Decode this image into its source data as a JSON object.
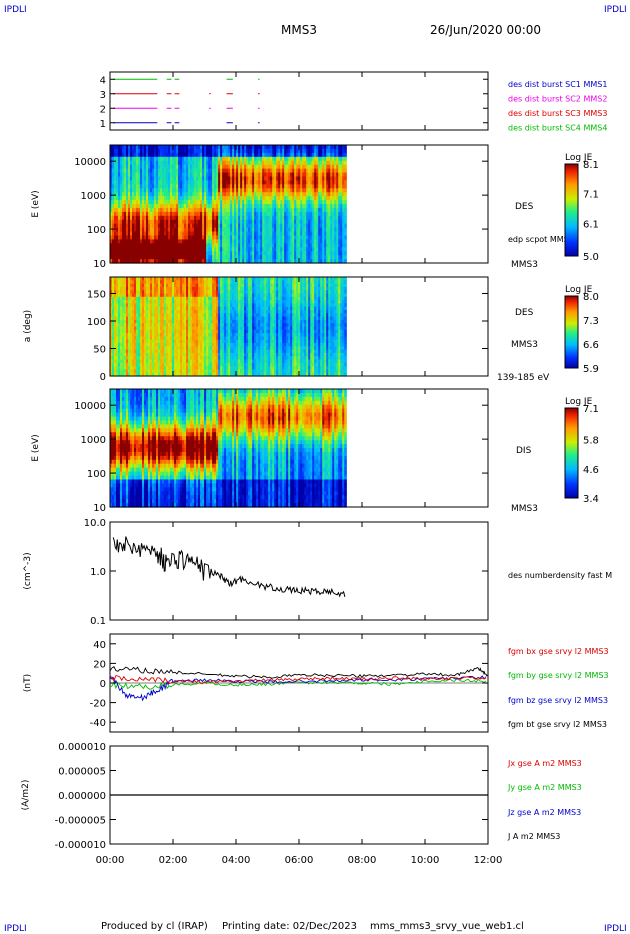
{
  "header": {
    "corner_left": "IPDLI",
    "corner_right": "IPDLI",
    "spacecraft": "MMS3",
    "date": "26/Jun/2020 00:00"
  },
  "footer": {
    "produced_by": "Produced by cl (IRAP)",
    "printing_date": "Printing date: 02/Dec/2023",
    "filename": "mms_mms3_srvy_vue_web1.cl",
    "corner_left": "IPDLI",
    "corner_right": "IPDLI"
  },
  "x_axis": {
    "ticks": [
      "00:00",
      "02:00",
      "04:00",
      "06:00",
      "08:00",
      "10:00",
      "12:00"
    ],
    "range_hours": [
      0,
      12
    ],
    "data_end_hours": 7.5
  },
  "colors": {
    "green": "#00bb00",
    "red": "#dd0000",
    "magenta": "#ee00ee",
    "blue": "#0000cc",
    "black": "#000000"
  },
  "chart_data": [
    {
      "type": "line",
      "panel": "burst-availability",
      "ylim": [
        0.5,
        4.5
      ],
      "y_ticks": [
        "4",
        "3",
        "2",
        "1"
      ],
      "legend": [
        {
          "label": "des dist burst SC1 MMS1",
          "color": "#0000cc"
        },
        {
          "label": "des dist burst SC2 MMS2",
          "color": "#ee00ee"
        },
        {
          "label": "des dist burst SC3 MMS3",
          "color": "#dd0000"
        },
        {
          "label": "des dist burst SC4 MMS4",
          "color": "#00bb00"
        }
      ],
      "series": [
        {
          "level": 4,
          "color": "#00bb00",
          "intervals_hours": [
            [
              0.1,
              1.5
            ],
            [
              1.8,
              1.95
            ],
            [
              2.05,
              2.2
            ],
            [
              3.7,
              3.9
            ],
            [
              4.7,
              4.75
            ]
          ]
        },
        {
          "level": 3,
          "color": "#dd0000",
          "intervals_hours": [
            [
              0.1,
              1.5
            ],
            [
              1.8,
              1.95
            ],
            [
              2.05,
              2.2
            ],
            [
              3.15,
              3.2
            ],
            [
              3.7,
              3.9
            ],
            [
              4.7,
              4.75
            ]
          ]
        },
        {
          "level": 2,
          "color": "#ee00ee",
          "intervals_hours": [
            [
              0.1,
              1.5
            ],
            [
              1.8,
              1.95
            ],
            [
              2.05,
              2.2
            ],
            [
              3.15,
              3.2
            ],
            [
              3.7,
              3.9
            ],
            [
              4.7,
              4.75
            ]
          ]
        },
        {
          "level": 1,
          "color": "#0000cc",
          "intervals_hours": [
            [
              0.1,
              1.5
            ],
            [
              1.8,
              1.95
            ],
            [
              2.05,
              2.2
            ],
            [
              3.7,
              3.9
            ],
            [
              4.7,
              4.75
            ]
          ]
        }
      ]
    },
    {
      "type": "heatmap",
      "panel": "des-energy",
      "ylabel": "E (eV)",
      "y_scale": "log",
      "ylim": [
        10,
        30000
      ],
      "y_ticks": [
        "10000",
        "1000",
        "100",
        "10"
      ],
      "right_labels": [
        "DES",
        "edp scpot MMS3",
        "MMS3"
      ],
      "colorbar": {
        "title": "Log JE",
        "ticks": [
          "8.1",
          "7.1",
          "6.1",
          "5.0"
        ],
        "range": [
          5.0,
          8.1
        ]
      }
    },
    {
      "type": "heatmap",
      "panel": "des-pitch-angle",
      "ylabel": "a (deg)",
      "ylim": [
        0,
        180
      ],
      "y_ticks": [
        "150",
        "100",
        "50",
        "0"
      ],
      "right_labels": [
        "DES",
        "MMS3",
        "139-185 eV"
      ],
      "colorbar": {
        "title": "Log JE",
        "ticks": [
          "8.0",
          "7.3",
          "6.6",
          "5.9"
        ],
        "range": [
          5.9,
          8.0
        ]
      }
    },
    {
      "type": "heatmap",
      "panel": "dis-energy",
      "ylabel": "E (eV)",
      "y_scale": "log",
      "ylim": [
        10,
        30000
      ],
      "y_ticks": [
        "10000",
        "1000",
        "100",
        "10"
      ],
      "right_labels": [
        "DIS",
        "MMS3"
      ],
      "colorbar": {
        "title": "Log JE",
        "ticks": [
          "7.1",
          "5.8",
          "4.6",
          "3.4"
        ],
        "range": [
          3.4,
          7.1
        ]
      }
    },
    {
      "type": "line",
      "panel": "density",
      "ylabel": "(cm^-3)",
      "y_scale": "log",
      "ylim": [
        0.1,
        10
      ],
      "y_ticks": [
        "10.0",
        "1.0",
        "0.1"
      ],
      "right_labels": [
        "des numberdensity fast M"
      ],
      "series": [
        {
          "color": "#000000",
          "x": [
            0.1,
            0.5,
            1.0,
            1.5,
            1.8,
            2.2,
            2.6,
            3.0,
            3.5,
            3.8,
            4.2,
            4.8,
            5.3,
            5.8,
            6.2,
            6.6,
            7.0,
            7.5
          ],
          "y": [
            4.0,
            3.5,
            3.0,
            2.5,
            1.5,
            2.0,
            1.6,
            1.1,
            0.8,
            0.55,
            0.7,
            0.5,
            0.45,
            0.4,
            0.4,
            0.38,
            0.38,
            0.33
          ]
        }
      ]
    },
    {
      "type": "line",
      "panel": "magnetic-field",
      "ylabel": "(nT)",
      "ylim": [
        -50,
        50
      ],
      "y_ticks": [
        "40",
        "20",
        "0",
        "-20",
        "-40"
      ],
      "legend": [
        {
          "label": "fgm bx gse srvy l2 MMS3",
          "color": "#dd0000"
        },
        {
          "label": "fgm by gse srvy l2 MMS3",
          "color": "#00bb00"
        },
        {
          "label": "fgm bz gse srvy l2 MMS3",
          "color": "#0000cc"
        },
        {
          "label": "fgm bt gse srvy l2 MMS3",
          "color": "#000000"
        }
      ],
      "series": [
        {
          "name": "bt",
          "color": "#000000",
          "x": [
            0,
            1,
            2,
            3,
            4,
            5,
            6,
            7,
            8,
            9,
            10,
            11,
            11.7,
            12
          ],
          "y": [
            14,
            13,
            11,
            9,
            7,
            6,
            8,
            8,
            7,
            8,
            9,
            8,
            15,
            7
          ]
        },
        {
          "name": "bx",
          "color": "#dd0000",
          "x": [
            0,
            1,
            2,
            3,
            4,
            5,
            6,
            7,
            8,
            9,
            10,
            11,
            12
          ],
          "y": [
            5,
            3,
            2,
            1,
            2,
            3,
            4,
            5,
            4,
            5,
            4,
            5,
            5
          ]
        },
        {
          "name": "by",
          "color": "#00bb00",
          "x": [
            0,
            1,
            2,
            3,
            4,
            5,
            6,
            7,
            8,
            9,
            10,
            11,
            12
          ],
          "y": [
            -2,
            -4,
            -2,
            0,
            -2,
            -1,
            0,
            1,
            0,
            -1,
            2,
            3,
            2
          ]
        },
        {
          "name": "bz",
          "color": "#0000cc",
          "x": [
            0,
            0.5,
            1,
            1.5,
            2,
            3,
            4,
            5,
            6,
            7,
            8,
            9,
            10,
            11,
            12
          ],
          "y": [
            8,
            -12,
            -15,
            -8,
            2,
            3,
            2,
            1,
            2,
            2,
            3,
            3,
            4,
            5,
            6
          ]
        }
      ]
    },
    {
      "type": "line",
      "panel": "current-density",
      "ylabel": "(A/m2)",
      "ylim": [
        -1e-05,
        1e-05
      ],
      "y_ticks": [
        "0.000010",
        "0.000005",
        "0.000000",
        "-0.000005",
        "-0.000010"
      ],
      "legend": [
        {
          "label": "Jx gse A m2 MMS3",
          "color": "#dd0000"
        },
        {
          "label": "Jy gse A m2 MMS3",
          "color": "#00bb00"
        },
        {
          "label": "Jz gse A m2 MMS3",
          "color": "#0000cc"
        },
        {
          "label": "J A m2 MMS3",
          "color": "#000000"
        }
      ],
      "series": [
        {
          "color": "#000000",
          "x": [
            0,
            12
          ],
          "y": [
            0,
            0
          ]
        }
      ]
    }
  ]
}
